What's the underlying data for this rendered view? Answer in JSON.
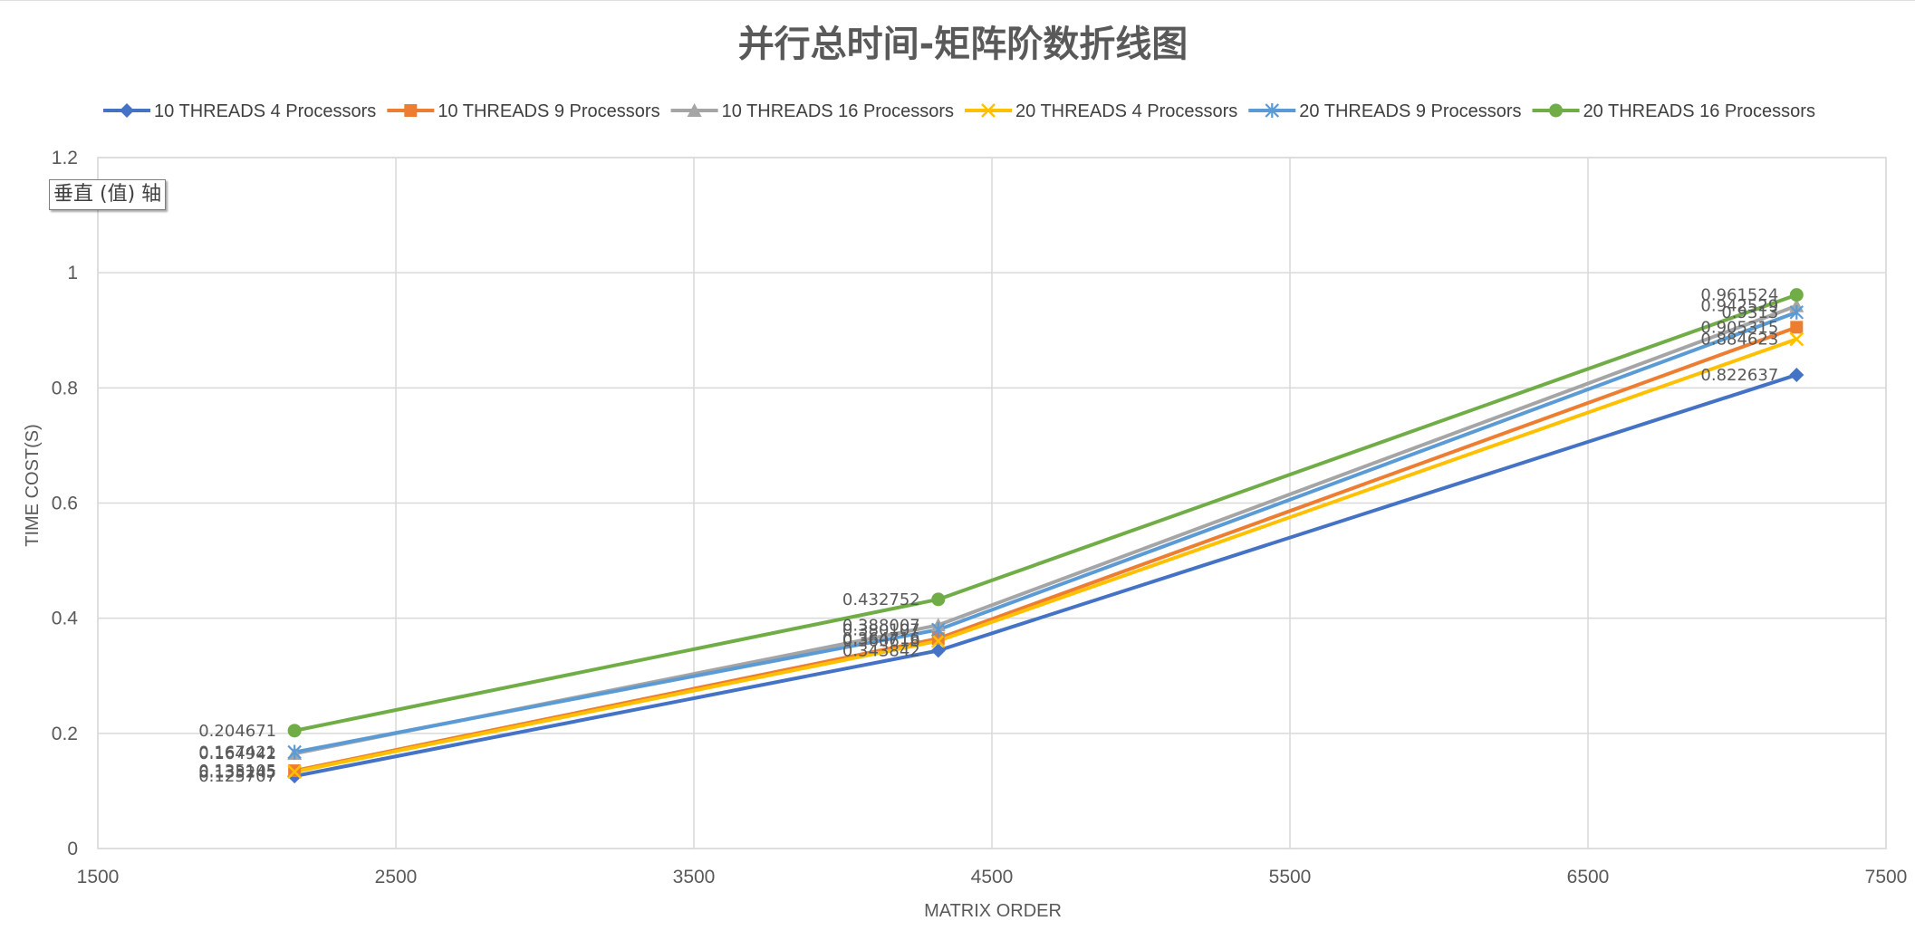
{
  "tooltip": "垂直 (值) 轴",
  "chart_data": {
    "type": "line",
    "title": "并行总时间-矩阵阶数折线图",
    "xlabel": "MATRIX ORDER",
    "ylabel": "TIME COST(S)",
    "xlim": [
      1500,
      7500
    ],
    "ylim": [
      0,
      1.2
    ],
    "xticks": [
      "1500",
      "2500",
      "3500",
      "4500",
      "5500",
      "6500",
      "7500"
    ],
    "yticks": [
      "0",
      "0.2",
      "0.4",
      "0.6",
      "0.8",
      "1",
      "1.2"
    ],
    "grid": true,
    "legend": "top",
    "x": [
      2160,
      4320,
      7200
    ],
    "series": [
      {
        "name": "10 THREADS 4 Processors",
        "color": "#4472C4",
        "marker": "diamond",
        "values": [
          0.125707,
          0.343842,
          0.822637
        ],
        "labels": [
          "0.125707",
          "0.343842",
          "0.822637"
        ]
      },
      {
        "name": "10 THREADS 9 Processors",
        "color": "#ED7D31",
        "marker": "square",
        "values": [
          0.135105,
          0.364716,
          0.905315
        ],
        "labels": [
          "0.135105",
          "0.364716",
          "0.905315"
        ]
      },
      {
        "name": "10 THREADS 16 Processors",
        "color": "#A5A5A5",
        "marker": "triangle",
        "values": [
          0.164942,
          0.388007,
          0.942529
        ],
        "labels": [
          "0.164942",
          "0.388007",
          "0.942529"
        ]
      },
      {
        "name": "20 THREADS 4 Processors",
        "color": "#FFC000",
        "marker": "x",
        "values": [
          0.133245,
          0.360618,
          0.884623
        ],
        "labels": [
          "0.133245",
          "0.360618",
          "0.884623"
        ]
      },
      {
        "name": "20 THREADS 9 Processors",
        "color": "#5B9BD5",
        "marker": "star",
        "values": [
          0.167421,
          0.380107,
          0.9313
        ],
        "labels": [
          "0.167421",
          "0.380107",
          "0.9313"
        ]
      },
      {
        "name": "20 THREADS 16 Processors",
        "color": "#70AD47",
        "marker": "circle",
        "values": [
          0.204671,
          0.432752,
          0.961524
        ],
        "labels": [
          "0.204671",
          "0.432752",
          "0.961524"
        ]
      }
    ]
  }
}
